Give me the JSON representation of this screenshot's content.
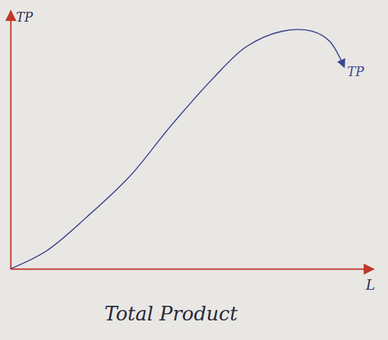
{
  "chart_data": {
    "type": "line",
    "title": "Total Product",
    "xlabel": "L",
    "ylabel": "TP",
    "x": [
      0,
      1,
      2.1,
      3.3,
      4.4,
      5.6,
      6.5,
      7.5,
      8.3,
      8.8,
      9.2
    ],
    "series": [
      {
        "name": "TP",
        "color": "#3b4690",
        "line_style": "solid",
        "values": [
          0,
          0.7,
          2,
          3.6,
          5.5,
          7.4,
          8.6,
          9.2,
          9.2,
          8.8,
          7.8
        ]
      }
    ],
    "xlim": [
      0,
      10
    ],
    "ylim": [
      0,
      10
    ],
    "grid": false,
    "tick_labels": false
  }
}
